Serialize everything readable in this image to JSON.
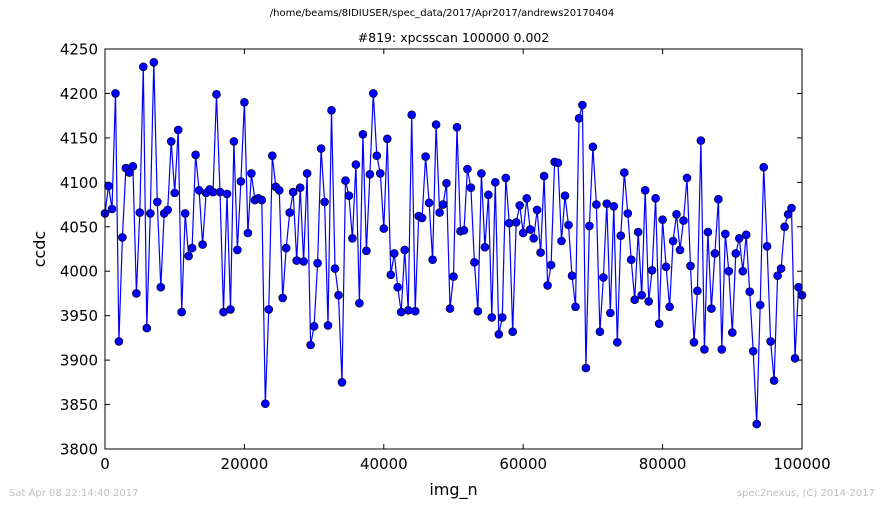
{
  "figure": {
    "suptitle": "/home/beams/8IDIUSER/spec_data/2017/Apr2017/andrews20170404",
    "footer_left": "Sat Apr 08 22:14:40 2017",
    "footer_right": "spec2nexus, (C) 2014-2017"
  },
  "colors": {
    "line": "#0000ff",
    "marker": "#0000ff",
    "marker_edge": "#000000",
    "footer": "#bfbfbf"
  },
  "chart_data": {
    "type": "line",
    "title": "#819: xpcsscan 100000 0.002",
    "xlabel": "img_n",
    "ylabel": "ccdc",
    "xlim": [
      0,
      100000
    ],
    "ylim": [
      3800,
      4250
    ],
    "xticks": [
      0,
      20000,
      40000,
      60000,
      80000,
      100000
    ],
    "yticks": [
      3800,
      3850,
      3900,
      3950,
      4000,
      4050,
      4100,
      4150,
      4200,
      4250
    ],
    "grid": false,
    "series": [
      {
        "marker": "circle",
        "x": [
          0,
          500,
          1000,
          1500,
          2000,
          2500,
          3000,
          3500,
          4000,
          4500,
          5000,
          5500,
          6000,
          6500,
          7000,
          7500,
          8000,
          8500,
          9000,
          9500,
          10000,
          10500,
          11000,
          11500,
          12000,
          12500,
          13000,
          13500,
          14000,
          14500,
          15000,
          15500,
          16000,
          16500,
          17000,
          17500,
          18000,
          18500,
          19000,
          19500,
          20000,
          20500,
          21000,
          21500,
          22000,
          22500,
          23000,
          23500,
          24000,
          24500,
          25000,
          25500,
          26000,
          26500,
          27000,
          27500,
          28000,
          28500,
          29000,
          29500,
          30000,
          30500,
          31000,
          31500,
          32000,
          32500,
          33000,
          33500,
          34000,
          34500,
          35000,
          35500,
          36000,
          36500,
          37000,
          37500,
          38000,
          38500,
          39000,
          39500,
          40000,
          40500,
          41000,
          41500,
          42000,
          42500,
          43000,
          43500,
          44000,
          44500,
          45000,
          45500,
          46000,
          46500,
          47000,
          47500,
          48000,
          48500,
          49000,
          49500,
          50000,
          50500,
          51000,
          51500,
          52000,
          52500,
          53000,
          53500,
          54000,
          54500,
          55000,
          55500,
          56000,
          56500,
          57000,
          57500,
          58000,
          58500,
          59000,
          59500,
          60000,
          60500,
          61000,
          61500,
          62000,
          62500,
          63000,
          63500,
          64000,
          64500,
          65000,
          65500,
          66000,
          66500,
          67000,
          67500,
          68000,
          68500,
          69000,
          69500,
          70000,
          70500,
          71000,
          71500,
          72000,
          72500,
          73000,
          73500,
          74000,
          74500,
          75000,
          75500,
          76000,
          76500,
          77000,
          77500,
          78000,
          78500,
          79000,
          79500,
          80000,
          80500,
          81000,
          81500,
          82000,
          82500,
          83000,
          83500,
          84000,
          84500,
          85000,
          85500,
          86000,
          86500,
          87000,
          87500,
          88000,
          88500,
          89000,
          89500,
          90000,
          90500,
          91000,
          91500,
          92000,
          92500,
          93000,
          93500,
          94000,
          94500,
          95000,
          95500,
          96000,
          96500,
          97000,
          97500,
          98000,
          98500,
          99000,
          99500,
          100000
        ],
        "y": [
          4065,
          4096,
          4070,
          4200,
          3921,
          4038,
          4116,
          4111,
          4118,
          3975,
          4066,
          4230,
          3936,
          4065,
          4235,
          4078,
          3982,
          4065,
          4069,
          4146,
          4088,
          4159,
          3954,
          4065,
          4017,
          4026,
          4131,
          4091,
          4030,
          4088,
          4092,
          4089,
          4199,
          4089,
          3954,
          4087,
          3957,
          4146,
          4024,
          4101,
          4190,
          4043,
          4110,
          4080,
          4082,
          4080,
          3851,
          3957,
          4130,
          4095,
          4091,
          3970,
          4026,
          4066,
          4089,
          4012,
          4094,
          4011,
          4110,
          3917,
          3938,
          4009,
          4138,
          4078,
          3939,
          4181,
          4003,
          3973,
          3875,
          4102,
          4085,
          4037,
          4120,
          3964,
          4154,
          4023,
          4109,
          4200,
          4130,
          4110,
          4048,
          4149,
          3996,
          4020,
          3982,
          3954,
          4024,
          3956,
          4176,
          3955,
          4062,
          4060,
          4129,
          4077,
          4013,
          4165,
          4066,
          4075,
          4099,
          3958,
          3994,
          4162,
          4045,
          4046,
          4115,
          4094,
          4010,
          3955,
          4110,
          4027,
          4086,
          3948,
          4100,
          3929,
          3948,
          4105,
          4054,
          3932,
          4055,
          4074,
          4043,
          4082,
          4047,
          4037,
          4069,
          4021,
          4107,
          3984,
          4007,
          4123,
          4122,
          4034,
          4085,
          4052,
          3995,
          3960,
          4172,
          4187,
          3891,
          4051,
          4140,
          4075,
          3932,
          3993,
          4076,
          3953,
          4073,
          3920,
          4040,
          4111,
          4065,
          4013,
          3968,
          4044,
          3973,
          4091,
          3966,
          4001,
          4082,
          3941,
          4058,
          4005,
          3960,
          4034,
          4064,
          4024,
          4057,
          4105,
          4006,
          3920,
          3978,
          4147,
          3912,
          4044,
          3958,
          4020,
          4081,
          3912,
          4042,
          4000,
          3931,
          4020,
          4037,
          4000,
          4041,
          3977,
          3910,
          3828,
          3962,
          4117,
          4028,
          3921,
          3877,
          3995,
          4003,
          4050,
          4064,
          4071,
          3902,
          3982,
          3973
        ]
      }
    ]
  }
}
